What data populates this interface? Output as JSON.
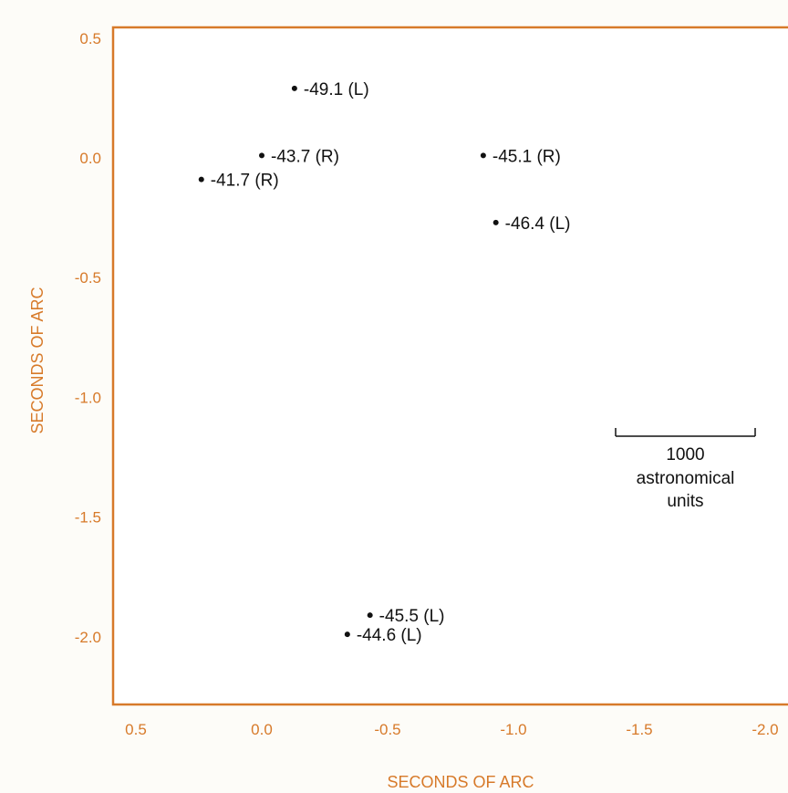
{
  "chart_data": {
    "type": "scatter",
    "xlabel": "SECONDS OF ARC",
    "ylabel": "SECONDS OF ARC",
    "xlim": [
      0.5,
      -2.0
    ],
    "ylim": [
      0.5,
      -2.0
    ],
    "x_ticks": [
      "0.5",
      "0.0",
      "-0.5",
      "-1.0",
      "-1.5",
      "-2.0"
    ],
    "x_tick_values": [
      0.5,
      0.0,
      -0.5,
      -1.0,
      -1.5,
      -2.0
    ],
    "y_ticks": [
      "0.5",
      "0.0",
      "-0.5",
      "-1.0",
      "-1.5",
      "-2.0"
    ],
    "y_tick_values": [
      0.5,
      0.0,
      -0.5,
      -1.0,
      -1.5,
      -2.0
    ],
    "grid": false,
    "points": [
      {
        "x": -0.13,
        "y": 0.29,
        "label": "-49.1 (L)"
      },
      {
        "x": 0.0,
        "y": 0.01,
        "label": "-43.7 (R)"
      },
      {
        "x": 0.24,
        "y": -0.09,
        "label": "-41.7 (R)"
      },
      {
        "x": -0.88,
        "y": 0.01,
        "label": "-45.1 (R)"
      },
      {
        "x": -0.93,
        "y": -0.27,
        "label": "-46.4 (L)"
      },
      {
        "x": -0.43,
        "y": -1.91,
        "label": "-45.5 (L)"
      },
      {
        "x": -0.34,
        "y": -1.99,
        "label": "-44.6 (L)"
      }
    ],
    "scale_bar": {
      "value_line1": "1000",
      "value_line2": "astronomical",
      "value_line3": "units"
    }
  },
  "colors": {
    "axis": "#d77a2a",
    "points": "#111111",
    "background": "#fdfcf8"
  }
}
